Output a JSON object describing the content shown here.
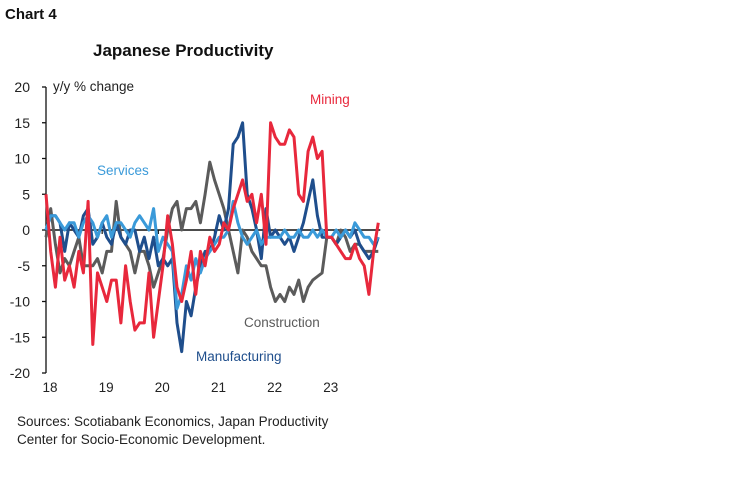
{
  "chart_label": "Chart 4",
  "sources": "Sources: Scotiabank Economics, Japan Productivity Center for Socio-Economic Development.",
  "chart_data": {
    "type": "line",
    "title": "Japanese Productivity",
    "ylabel": "y/y % change",
    "ylim": [
      -20,
      20
    ],
    "yticks": [
      "20",
      "15",
      "10",
      "5",
      "0",
      "-5",
      "-10",
      "-15",
      "-20"
    ],
    "xticks": [
      "18",
      "19",
      "20",
      "21",
      "22",
      "23"
    ],
    "grid": false,
    "x": [
      "2018-01",
      "2018-02",
      "2018-03",
      "2018-04",
      "2018-05",
      "2018-06",
      "2018-07",
      "2018-08",
      "2018-09",
      "2018-10",
      "2018-11",
      "2018-12",
      "2019-01",
      "2019-02",
      "2019-03",
      "2019-04",
      "2019-05",
      "2019-06",
      "2019-07",
      "2019-08",
      "2019-09",
      "2019-10",
      "2019-11",
      "2019-12",
      "2020-01",
      "2020-02",
      "2020-03",
      "2020-04",
      "2020-05",
      "2020-06",
      "2020-07",
      "2020-08",
      "2020-09",
      "2020-10",
      "2020-11",
      "2020-12",
      "2021-01",
      "2021-02",
      "2021-03",
      "2021-04",
      "2021-05",
      "2021-06",
      "2021-07",
      "2021-08",
      "2021-09",
      "2021-10",
      "2021-11",
      "2021-12",
      "2022-01",
      "2022-02",
      "2022-03",
      "2022-04",
      "2022-05",
      "2022-06",
      "2022-07",
      "2022-08",
      "2022-09",
      "2022-10",
      "2022-11",
      "2022-12",
      "2023-01",
      "2023-02",
      "2023-03",
      "2023-04",
      "2023-05",
      "2023-06",
      "2023-07",
      "2023-08",
      "2023-09",
      "2023-10",
      "2023-11",
      "2023-12"
    ],
    "series": [
      {
        "name": "Construction",
        "color": "#5b5b5b",
        "values": [
          -1,
          3,
          -2,
          -6,
          -4,
          -5,
          -3,
          -1,
          -5,
          -5,
          -5,
          -4,
          -6,
          -3,
          -3,
          4,
          -1,
          -2,
          -3,
          -6,
          -3,
          -3,
          -5,
          -8,
          -6,
          -4,
          0,
          3,
          4,
          0,
          3,
          3,
          4,
          1,
          5,
          9.5,
          7,
          5,
          3,
          0,
          -3,
          -6,
          0,
          -1,
          -3,
          -4,
          -5,
          -5,
          -8,
          -10,
          -9,
          -10,
          -8,
          -9,
          -7,
          -10,
          -8,
          -7,
          -6.5,
          -6,
          -1,
          -1,
          -2,
          0,
          -1,
          -3,
          -2,
          -2,
          -3,
          -3,
          -3,
          -3
        ]
      },
      {
        "name": "Manufacturing",
        "color": "#1f4e8c",
        "values": [
          0,
          2,
          2,
          1,
          -3,
          1,
          0,
          -1,
          2,
          3,
          -2,
          -1,
          1,
          -1,
          -2,
          1,
          -1,
          -2,
          0,
          0,
          -3,
          -1,
          -4,
          -1,
          -5,
          -4,
          -5,
          -4,
          -13,
          -17,
          -10,
          -12,
          -8,
          -5,
          -3,
          -3,
          -1,
          2,
          0,
          3,
          12,
          13,
          15,
          5,
          3,
          0,
          -4,
          3,
          -1,
          0,
          -1,
          -2,
          -1,
          -3,
          -1,
          1,
          4,
          7,
          2,
          -1,
          -1,
          -1,
          -2,
          -1,
          0,
          -1,
          0,
          -2,
          -3,
          -4,
          -3,
          -1
        ]
      },
      {
        "name": "Services",
        "color": "#3a9ad9",
        "values": [
          0,
          2,
          2,
          1,
          0,
          1,
          1,
          -1,
          1,
          2,
          1,
          -1,
          1,
          2,
          -1,
          1,
          1,
          0,
          -1,
          1,
          2,
          1,
          0,
          3,
          -3,
          -1,
          -2,
          -3,
          -11,
          -9,
          -5,
          -7,
          -4,
          -6,
          -4,
          -3,
          -2,
          -1,
          -1,
          0,
          4,
          1,
          -1,
          -2,
          -1,
          0,
          -2,
          -1,
          -1,
          -1,
          -1,
          0,
          -1,
          -1,
          0,
          -1,
          -1,
          0,
          -1,
          0,
          -1,
          -1,
          0,
          -1,
          0,
          -1,
          1,
          0,
          -1,
          -1,
          -2,
          -1
        ]
      },
      {
        "name": "Mining",
        "color": "#e8283c",
        "values": [
          5,
          -3,
          -8,
          -1,
          -7,
          -5,
          -8,
          -3,
          -6,
          4,
          -16,
          -6,
          -8,
          -10,
          -7,
          -7,
          -13,
          -5,
          -10,
          -14,
          -13,
          -13,
          -6,
          -15,
          -10,
          -5,
          2,
          -2,
          -8,
          -10,
          -7,
          -3,
          -9,
          -3,
          -5,
          -1,
          -3,
          -2,
          1,
          0,
          3,
          5,
          7,
          4,
          5,
          1,
          5,
          -2,
          15,
          13,
          12,
          12,
          14,
          13,
          5,
          4,
          11,
          13,
          10,
          11,
          -1,
          -1,
          -2,
          -3,
          -4,
          -4,
          -2,
          -4,
          -5,
          -9,
          -3,
          1
        ]
      }
    ],
    "legend": "inline labels"
  }
}
